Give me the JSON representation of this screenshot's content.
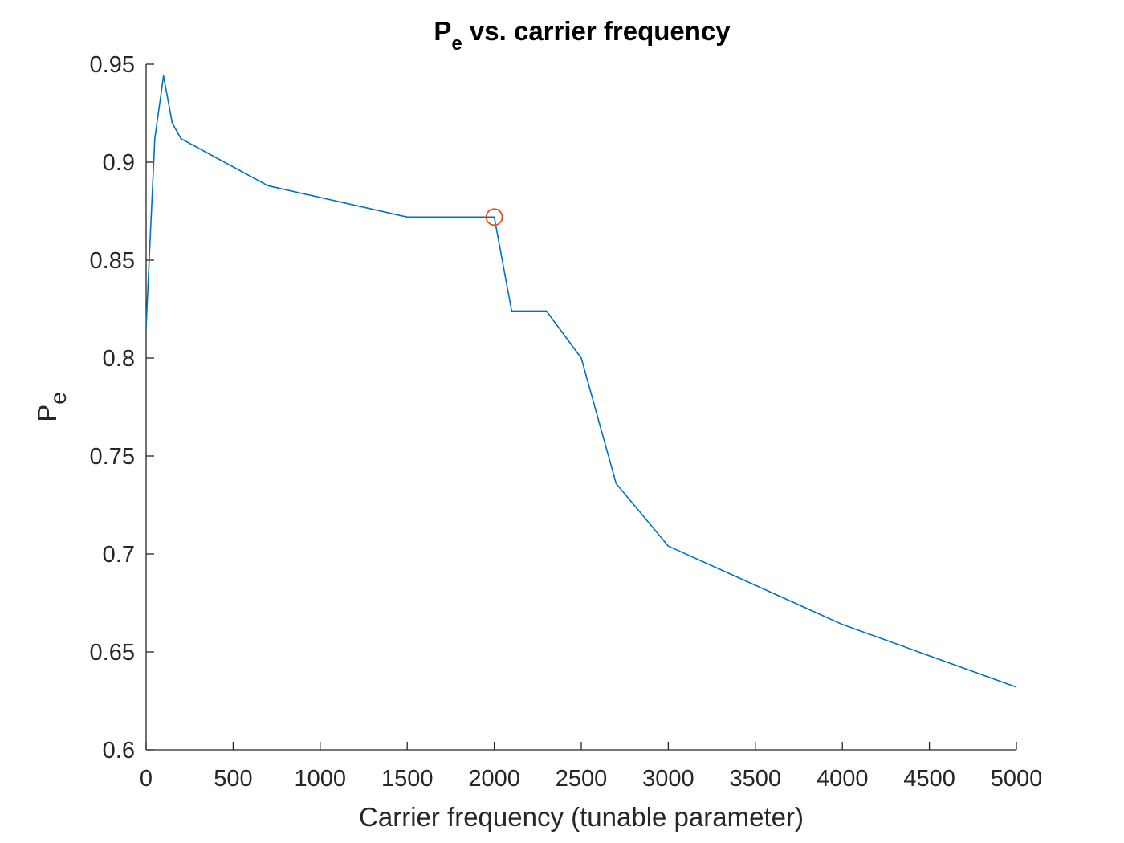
{
  "chart_data": {
    "type": "line",
    "title": {
      "main": "P",
      "subscript": "e",
      "rest": " vs. carrier frequency"
    },
    "xlabel": "Carrier frequency (tunable parameter)",
    "ylabel": {
      "main": "P",
      "subscript": "e"
    },
    "xlim": [
      0,
      5000
    ],
    "ylim": [
      0.6,
      0.95
    ],
    "xticks": [
      0,
      500,
      1000,
      1500,
      2000,
      2500,
      3000,
      3500,
      4000,
      4500,
      5000
    ],
    "xtick_labels": [
      "0",
      "500",
      "1000",
      "1500",
      "2000",
      "2500",
      "3000",
      "3500",
      "4000",
      "4500",
      "5000"
    ],
    "yticks": [
      0.6,
      0.65,
      0.7,
      0.75,
      0.8,
      0.85,
      0.9,
      0.95
    ],
    "ytick_labels": [
      "0.6",
      "0.65",
      "0.7",
      "0.75",
      "0.8",
      "0.85",
      "0.9",
      "0.95"
    ],
    "grid": false,
    "series": [
      {
        "color": "#0072BD",
        "x": [
          0,
          50,
          100,
          150,
          200,
          700,
          1500,
          2000,
          2100,
          2300,
          2500,
          2700,
          3000,
          4000,
          5000
        ],
        "y": [
          0.816,
          0.912,
          0.944,
          0.92,
          0.912,
          0.888,
          0.872,
          0.872,
          0.824,
          0.824,
          0.8,
          0.736,
          0.704,
          0.664,
          0.632
        ]
      }
    ],
    "marker": {
      "color": "#D95319",
      "shape": "circle",
      "x": 2000,
      "y": 0.872
    }
  }
}
